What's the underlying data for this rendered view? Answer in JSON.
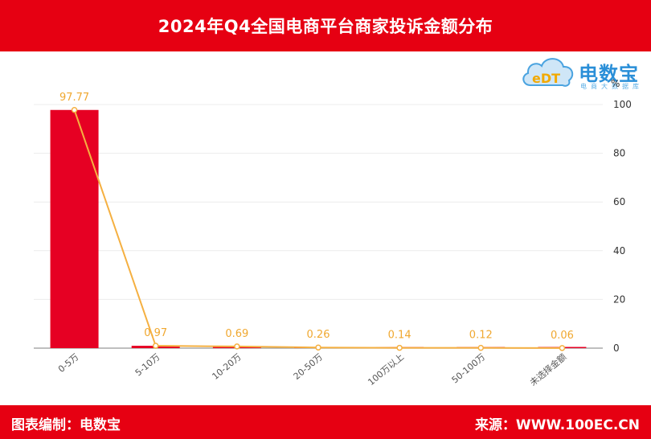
{
  "header": {
    "title": "2024年Q4全国电商平台商家投诉金额分布"
  },
  "logo": {
    "text": "电数宝",
    "subtitle": "电商大数据库",
    "mark": "eDT"
  },
  "footer": {
    "compiler": "图表编制：电数宝",
    "source": "来源：WWW.100EC.CN"
  },
  "colors": {
    "bar": "#e60023",
    "line": "#f5b041",
    "label": "#f0a830",
    "header": "#e60012"
  },
  "chart_data": {
    "type": "bar",
    "title": "2024年Q4全国电商平台商家投诉金额分布",
    "categories": [
      "0-5万",
      "5-10万",
      "10-20万",
      "20-50万",
      "100万以上",
      "50-100万",
      "未选择金额"
    ],
    "values": [
      97.77,
      0.97,
      0.69,
      0.26,
      0.14,
      0.12,
      0.06
    ],
    "ylabel": "%",
    "ylim": [
      0,
      100
    ],
    "yticks": [
      0,
      20,
      40,
      60,
      80,
      100
    ],
    "axis_position": "right",
    "overlay": "line",
    "grid": true
  }
}
